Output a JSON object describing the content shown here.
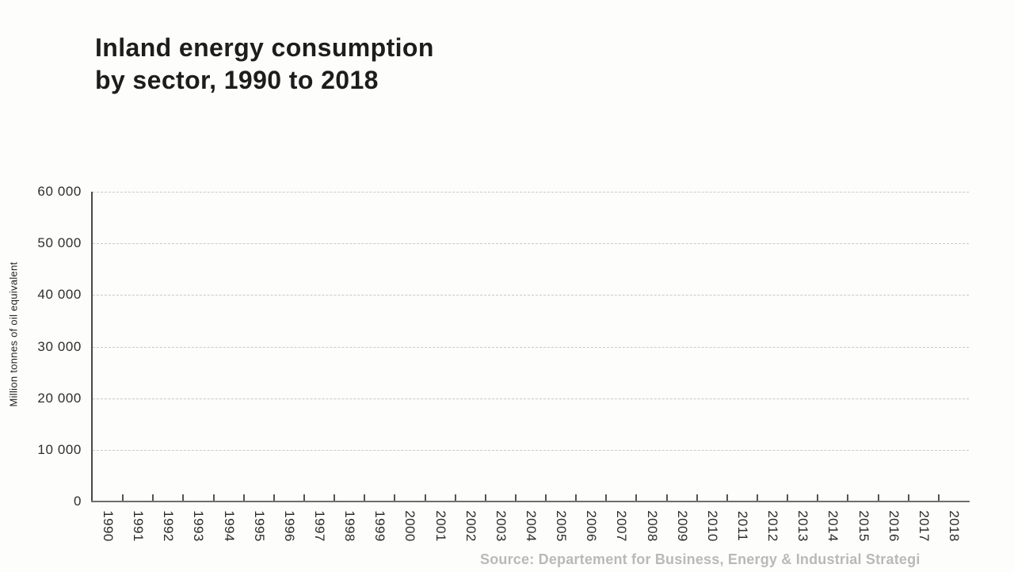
{
  "title": {
    "line1": "Inland energy consumption",
    "line2": "by sector, 1990 to 2018"
  },
  "source": {
    "text": "Source: Departement for Business, Energy & Industrial Strategi"
  },
  "colors": {
    "background": "#fdfdfb",
    "title_text": "#1d1d1d",
    "axis_line_y": "#484848",
    "axis_line_x": "#6e6e6e",
    "grid_line": "#c9c9c9",
    "tick_label": "#2e2e2e",
    "source_text": "#b9b9b9"
  },
  "chart_data": {
    "type": "bar",
    "title": "Inland energy consumption by sector, 1990 to 2018",
    "categories": [
      "1990",
      "1991",
      "1992",
      "1993",
      "1994",
      "1995",
      "1996",
      "1997",
      "1998",
      "1999",
      "2000",
      "2001",
      "2002",
      "2003",
      "2004",
      "2005",
      "2006",
      "2007",
      "2008",
      "2009",
      "2010",
      "2011",
      "2012",
      "2013",
      "2014",
      "2015",
      "2016",
      "2017",
      "2018"
    ],
    "series": [],
    "xlabel": "",
    "ylabel": "Million tonnes of oil equivalent",
    "ylim": [
      0,
      60000
    ],
    "y_ticks": [
      0,
      10000,
      20000,
      30000,
      40000,
      50000,
      60000
    ],
    "y_tick_labels": [
      "0",
      "10 000",
      "20 000",
      "30 000",
      "40 000",
      "50 000",
      "60 000"
    ],
    "grid": "horizontal-dashed",
    "legend_position": "none"
  }
}
